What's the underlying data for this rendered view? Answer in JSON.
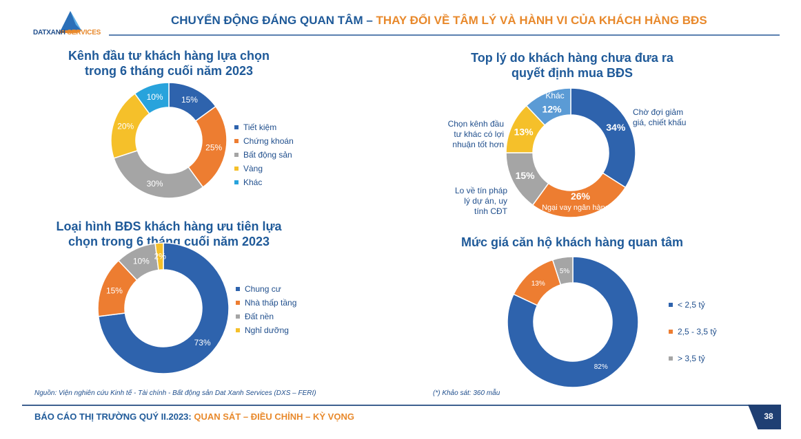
{
  "header": {
    "logo_main": "DATXANH",
    "logo_accent": "SERVICES",
    "title_blue": "CHUYỂN ĐỘNG ĐÁNG QUAN TÂM –",
    "title_orange": "THAY ĐỔI VỀ TÂM LÝ VÀ HÀNH VI CỦA KHÁCH HÀNG BĐS"
  },
  "chart_data": [
    {
      "type": "pie",
      "title": "Kênh đầu tư khách hàng lựa chọn trong 6 tháng cuối năm 2023",
      "title_lines": [
        "Kênh đầu tư khách hàng lựa chọn",
        "trong 6 tháng cuối năm 2023"
      ],
      "categories": [
        "Tiết kiệm",
        "Chứng khoán",
        "Bất động sản",
        "Vàng",
        "Khác"
      ],
      "values": [
        15,
        25,
        30,
        20,
        10
      ],
      "labels": [
        "15%",
        "25%",
        "30%",
        "20%",
        "10%"
      ],
      "colors": [
        "#2e63ad",
        "#ed7d31",
        "#a5a5a5",
        "#f5c02a",
        "#28a3dc"
      ],
      "legend": "right"
    },
    {
      "type": "pie",
      "title": "Loại hình BĐS khách hàng ưu tiên lựa chọn trong 6 tháng cuối năm 2023",
      "title_lines": [
        "Loại hình BĐS khách hàng ưu tiên lựa",
        "chọn trong 6 tháng cuối năm 2023"
      ],
      "categories": [
        "Chung cư",
        "Nhà thấp tầng",
        "Đất nền",
        "Nghỉ dưỡng"
      ],
      "values": [
        73,
        15,
        10,
        2
      ],
      "labels": [
        "73%",
        "15%",
        "10%",
        "2%"
      ],
      "colors": [
        "#2e63ad",
        "#ed7d31",
        "#a5a5a5",
        "#f5c02a"
      ],
      "legend": "right"
    },
    {
      "type": "pie",
      "title": "Top lý do khách hàng chưa đưa ra quyết định mua BĐS",
      "title_lines": [
        "Top lý do khách hàng chưa đưa ra",
        "quyết định mua BĐS"
      ],
      "categories": [
        "Chờ đợi giảm giá, chiết khấu",
        "Ngại vay ngân hàng",
        "Lo về tín pháp lý dự án, uy tính CĐT",
        "Chọn kênh đầu tư khác có lợi nhuận tốt hơn",
        "Khác"
      ],
      "values": [
        34,
        26,
        15,
        13,
        12
      ],
      "labels": [
        "34%",
        "26%",
        "15%",
        "13%",
        "12%"
      ],
      "colors": [
        "#2e63ad",
        "#ed7d31",
        "#a5a5a5",
        "#f5c02a",
        "#5b9bd5"
      ],
      "legend": "outside labels"
    },
    {
      "type": "pie",
      "title": "Mức giá căn hộ khách hàng quan tâm",
      "title_lines": [
        "Mức giá căn hộ khách hàng quan tâm"
      ],
      "categories": [
        "< 2,5 tỷ",
        "2,5 - 3,5 tỷ",
        "> 3,5 tỷ"
      ],
      "values": [
        82,
        13,
        5
      ],
      "labels": [
        "82%",
        "13%",
        "5%"
      ],
      "colors": [
        "#2e63ad",
        "#ed7d31",
        "#a5a5a5"
      ],
      "legend": "right"
    }
  ],
  "chart3_outside_labels": {
    "a_lines": [
      "Chờ đợi giảm",
      "giá, chiết khấu"
    ],
    "b": "Ngại vay ngân hàng",
    "c_lines": [
      "Lo về tín pháp",
      "lý dự án, uy",
      "tính CĐT"
    ],
    "d_lines": [
      "Chọn kênh đầu",
      "tư khác có lợi",
      "nhuận tốt hơn"
    ],
    "e": "Khác"
  },
  "notes": {
    "source": "Nguồn: Viện nghiên cứu Kinh tế - Tài chính - Bất động sản Dat Xanh Services (DXS – FERI)",
    "survey": "(*) Khảo sát: 360 mẫu"
  },
  "footer": {
    "blue": "BÁO CÁO THỊ TRƯỜNG QUÝ II.2023:",
    "orange": "QUAN SÁT – ĐIỀU CHỈNH – KỲ VỌNG",
    "page": "38"
  }
}
